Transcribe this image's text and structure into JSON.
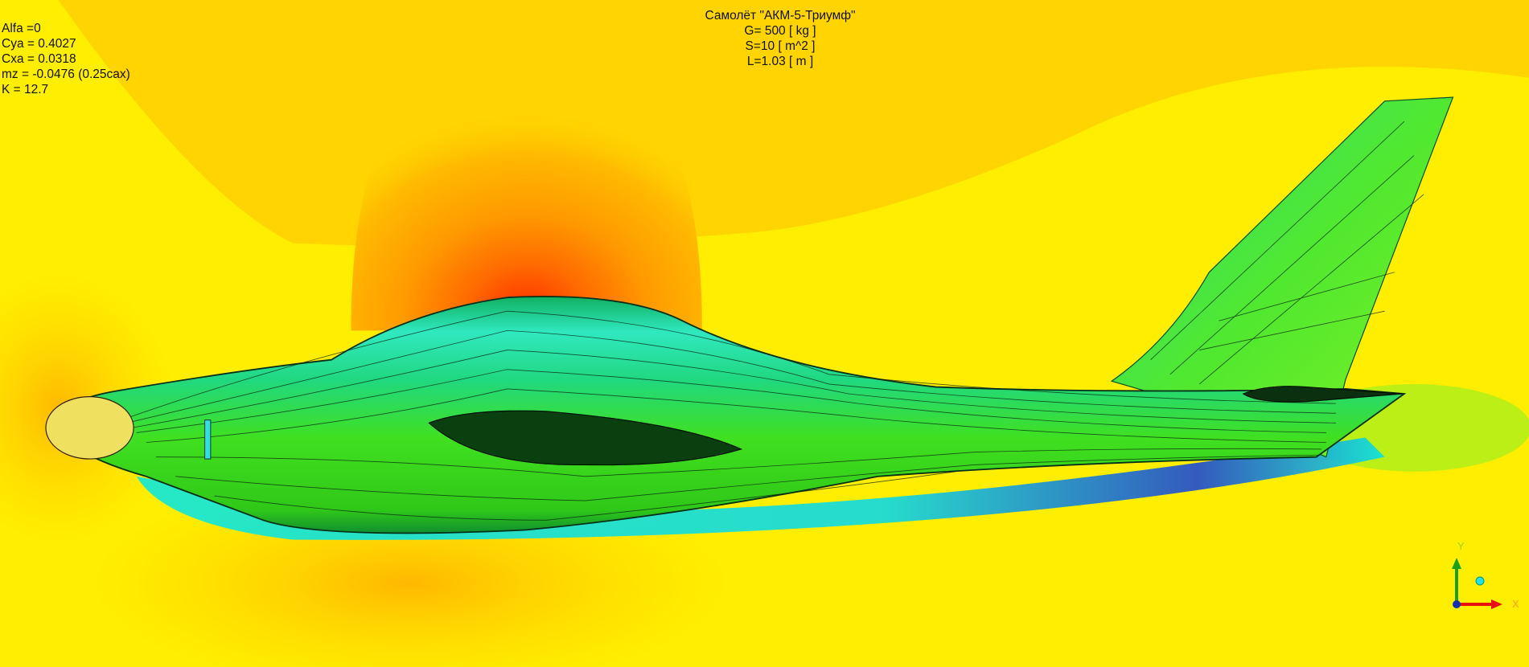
{
  "coefficients": {
    "alfa": "Alfa =0",
    "cya": "Cya = 0.4027",
    "cxa": "Cxa = 0.0318",
    "mz": "mz = -0.0476 (0.25cax)",
    "k": "K = 12.7"
  },
  "aircraft": {
    "title": "Самолёт \"АКМ-5-Триумф\"",
    "weight": "G= 500 [ kg ]",
    "area": "S=10 [ m^2 ]",
    "length": "L=1.03 [ m ]"
  },
  "axis_triad": {
    "y_label": "Y",
    "x_label": "X",
    "colors": {
      "y": "#1aa01a",
      "x": "#e81010",
      "z": "#1030b0"
    }
  },
  "colormap": {
    "low": "#1030e0",
    "cyan": "#00e8e8",
    "green": "#20e020",
    "yellow": "#ffff00",
    "orange": "#ffb000",
    "high": "#ff2000"
  }
}
